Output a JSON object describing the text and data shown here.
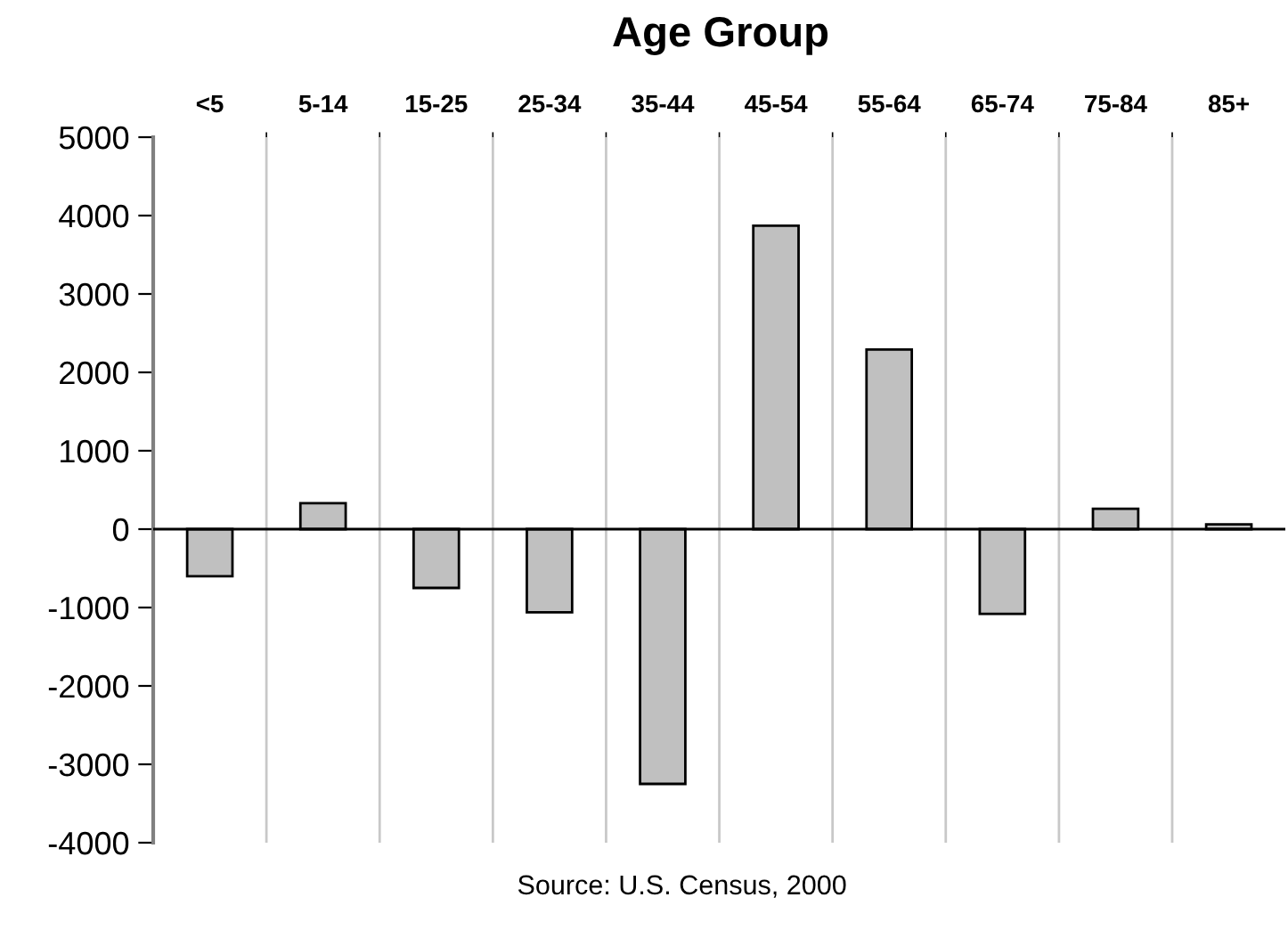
{
  "chart_data": {
    "type": "bar",
    "title": "Age Group",
    "categories": [
      "<5",
      "5-14",
      "15-25",
      "25-34",
      "35-44",
      "45-54",
      "55-64",
      "65-74",
      "75-84",
      "85+"
    ],
    "values": [
      -600,
      330,
      -750,
      -1060,
      -3250,
      3870,
      2290,
      -1080,
      260,
      60
    ],
    "color": "#c0c0c0",
    "ylim": [
      -4000,
      5000
    ],
    "yticks": [
      -4000,
      -3000,
      -2000,
      -1000,
      0,
      1000,
      2000,
      3000,
      4000,
      5000
    ],
    "grid": "x",
    "annotations": [
      "Source: U.S. Census, 2000"
    ]
  }
}
